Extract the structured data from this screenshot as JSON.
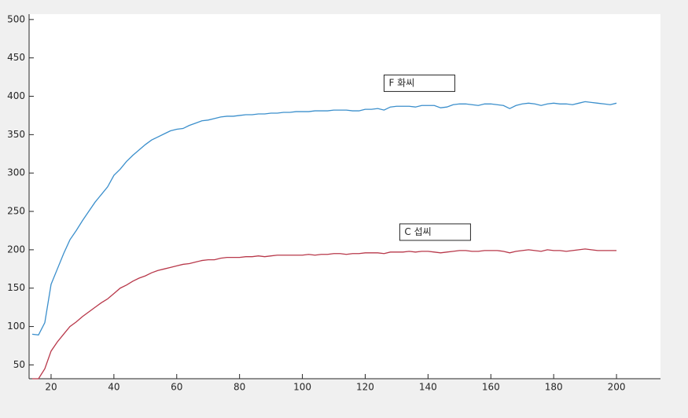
{
  "chart_data": {
    "type": "line",
    "x": [
      14,
      16,
      18,
      20,
      22,
      24,
      26,
      28,
      30,
      32,
      34,
      36,
      38,
      40,
      42,
      44,
      46,
      48,
      50,
      52,
      54,
      56,
      58,
      60,
      62,
      64,
      66,
      68,
      70,
      72,
      74,
      76,
      78,
      80,
      82,
      84,
      86,
      88,
      90,
      92,
      94,
      96,
      98,
      100,
      102,
      104,
      106,
      108,
      110,
      112,
      114,
      116,
      118,
      120,
      122,
      124,
      126,
      128,
      130,
      132,
      134,
      136,
      138,
      140,
      142,
      144,
      146,
      148,
      150,
      152,
      154,
      156,
      158,
      160,
      162,
      164,
      166,
      168,
      170,
      172,
      174,
      176,
      178,
      180,
      182,
      184,
      186,
      188,
      190,
      192,
      194,
      196,
      198,
      200
    ],
    "series": [
      {
        "color": "#3b8fcc",
        "values": [
          90,
          89,
          105,
          155,
          175,
          195,
          213,
          225,
          238,
          250,
          262,
          272,
          282,
          297,
          305,
          315,
          323,
          330,
          337,
          343,
          347,
          351,
          355,
          357,
          358,
          362,
          365,
          368,
          369,
          371,
          373,
          374,
          374,
          375,
          376,
          376,
          377,
          377,
          378,
          378,
          379,
          379,
          380,
          380,
          380,
          381,
          381,
          381,
          382,
          382,
          382,
          381,
          381,
          383,
          383,
          384,
          382,
          386,
          387,
          387,
          387,
          386,
          388,
          388,
          388,
          385,
          386,
          389,
          390,
          390,
          389,
          388,
          390,
          390,
          389,
          388,
          384,
          388,
          390,
          391,
          390,
          388,
          390,
          391,
          390,
          390,
          389,
          391,
          393,
          392,
          391,
          390,
          389,
          391
        ]
      },
      {
        "color": "#b8384a",
        "values": [
          32,
          32,
          45,
          68,
          80,
          90,
          100,
          106,
          113,
          119,
          125,
          131,
          136,
          143,
          150,
          154,
          159,
          163,
          166,
          170,
          173,
          175,
          177,
          179,
          181,
          182,
          184,
          186,
          187,
          187,
          189,
          190,
          190,
          190,
          191,
          191,
          192,
          191,
          192,
          193,
          193,
          193,
          193,
          193,
          194,
          193,
          194,
          194,
          195,
          195,
          194,
          195,
          195,
          196,
          196,
          196,
          195,
          197,
          197,
          197,
          198,
          197,
          198,
          198,
          197,
          196,
          197,
          198,
          199,
          199,
          198,
          198,
          199,
          199,
          199,
          198,
          196,
          198,
          199,
          200,
          199,
          198,
          200,
          199,
          199,
          198,
          199,
          200,
          201,
          200,
          199,
          199,
          199,
          199
        ]
      }
    ],
    "annotations": [
      {
        "text": "F 화씨",
        "x": 126,
        "y": 417
      },
      {
        "text": "C 섭씨",
        "x": 131,
        "y": 223
      }
    ],
    "xlim": [
      13,
      214
    ],
    "ylim": [
      32,
      507
    ],
    "xticks": [
      20,
      40,
      60,
      80,
      100,
      120,
      140,
      160,
      180,
      200
    ],
    "yticks": [
      50,
      100,
      150,
      200,
      250,
      300,
      350,
      400,
      450,
      500
    ]
  }
}
